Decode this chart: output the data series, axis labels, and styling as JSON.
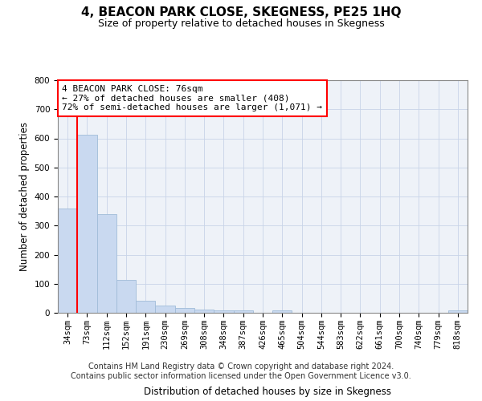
{
  "title": "4, BEACON PARK CLOSE, SKEGNESS, PE25 1HQ",
  "subtitle": "Size of property relative to detached houses in Skegness",
  "xlabel": "Distribution of detached houses by size in Skegness",
  "ylabel": "Number of detached properties",
  "footer_line1": "Contains HM Land Registry data © Crown copyright and database right 2024.",
  "footer_line2": "Contains public sector information licensed under the Open Government Licence v3.0.",
  "categories": [
    "34sqm",
    "73sqm",
    "112sqm",
    "152sqm",
    "191sqm",
    "230sqm",
    "269sqm",
    "308sqm",
    "348sqm",
    "387sqm",
    "426sqm",
    "465sqm",
    "504sqm",
    "544sqm",
    "583sqm",
    "622sqm",
    "661sqm",
    "700sqm",
    "740sqm",
    "779sqm",
    "818sqm"
  ],
  "values": [
    358,
    612,
    340,
    113,
    42,
    25,
    17,
    12,
    8,
    7,
    0,
    8,
    0,
    0,
    0,
    0,
    0,
    0,
    0,
    0,
    7
  ],
  "bar_color": "#c9d9f0",
  "bar_edge_color": "#a0bcd8",
  "red_line_color": "red",
  "annotation_text": "4 BEACON PARK CLOSE: 76sqm\n← 27% of detached houses are smaller (408)\n72% of semi-detached houses are larger (1,071) →",
  "annotation_box_color": "white",
  "annotation_box_edge_color": "red",
  "ylim": [
    0,
    800
  ],
  "yticks": [
    0,
    100,
    200,
    300,
    400,
    500,
    600,
    700,
    800
  ],
  "title_fontsize": 11,
  "subtitle_fontsize": 9,
  "axis_label_fontsize": 8.5,
  "tick_fontsize": 7.5,
  "annotation_fontsize": 8,
  "footer_fontsize": 7
}
